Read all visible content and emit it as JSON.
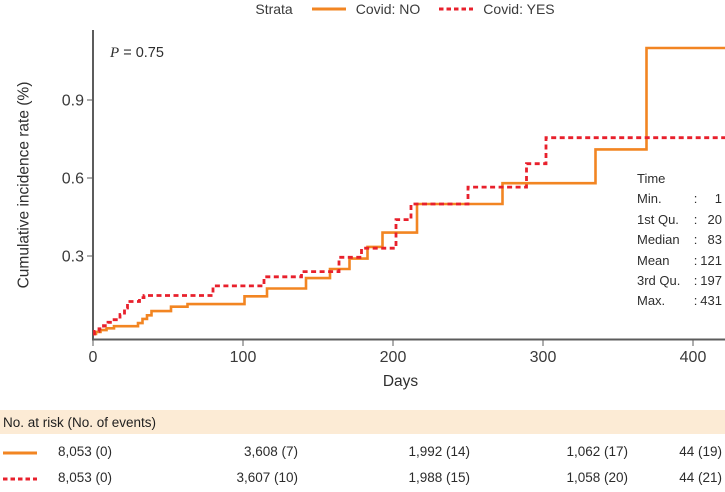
{
  "legend": {
    "title": "Strata",
    "items": [
      {
        "label": "Covid: NO"
      },
      {
        "label": "Covid: YES"
      }
    ]
  },
  "annotation": {
    "symbol": "P",
    "text": "= 0.75"
  },
  "stats_panel": {
    "title": "Time",
    "separator": ":",
    "rows": [
      {
        "label": "Min.",
        "value": "1"
      },
      {
        "label": "1st Qu.",
        "value": "20"
      },
      {
        "label": "Median",
        "value": "83"
      },
      {
        "label": "Mean",
        "value": "121"
      },
      {
        "label": "3rd Qu.",
        "value": "197"
      },
      {
        "label": "Max.",
        "value": "431"
      }
    ]
  },
  "risk_table": {
    "header": "No. at risk (No. of events)",
    "rows": [
      {
        "strata": "Covid: NO",
        "values": [
          "8,053 (0)",
          "3,608 (7)",
          "1,992 (14)",
          "1,062 (17)",
          "44 (19)"
        ]
      },
      {
        "strata": "Covid: YES",
        "values": [
          "8,053 (0)",
          "3,607 (10)",
          "1,988 (15)",
          "1,058 (20)",
          "44 (21)"
        ]
      }
    ]
  },
  "chart_data": {
    "type": "line",
    "subtype": "step",
    "xlabel": "Days",
    "ylabel": "Cumulative incidence rate (%)",
    "xlim": [
      0,
      420
    ],
    "ylim": [
      0,
      1.15
    ],
    "x_ticks": [
      0,
      100,
      200,
      300,
      400
    ],
    "y_ticks": [
      0.3,
      0.6,
      0.9
    ],
    "p_value": 0.75,
    "legend_position": "top",
    "grid": false,
    "series": [
      {
        "name": "Covid: NO",
        "color": "#F28522",
        "dash": "solid",
        "points": [
          [
            0,
            0
          ],
          [
            2,
            0.008
          ],
          [
            5,
            0.015
          ],
          [
            9,
            0.022
          ],
          [
            14,
            0.03
          ],
          [
            30,
            0.042
          ],
          [
            33,
            0.058
          ],
          [
            36,
            0.072
          ],
          [
            39,
            0.088
          ],
          [
            52,
            0.105
          ],
          [
            63,
            0.115
          ],
          [
            101,
            0.145
          ],
          [
            116,
            0.175
          ],
          [
            142,
            0.215
          ],
          [
            158,
            0.25
          ],
          [
            171,
            0.29
          ],
          [
            183,
            0.335
          ],
          [
            193,
            0.39
          ],
          [
            216,
            0.5
          ],
          [
            273,
            0.58
          ],
          [
            335,
            0.71
          ],
          [
            369,
            1.1
          ],
          [
            420,
            1.1
          ]
        ]
      },
      {
        "name": "Covid: YES",
        "color": "#E8202C",
        "dash": "dashed",
        "points": [
          [
            0,
            0
          ],
          [
            1,
            0.01
          ],
          [
            4,
            0.02
          ],
          [
            7,
            0.032
          ],
          [
            10,
            0.045
          ],
          [
            13,
            0.055
          ],
          [
            18,
            0.075
          ],
          [
            21,
            0.1
          ],
          [
            23,
            0.125
          ],
          [
            31,
            0.14
          ],
          [
            34,
            0.148
          ],
          [
            80,
            0.185
          ],
          [
            114,
            0.22
          ],
          [
            139,
            0.24
          ],
          [
            164,
            0.295
          ],
          [
            179,
            0.33
          ],
          [
            202,
            0.44
          ],
          [
            212,
            0.5
          ],
          [
            250,
            0.565
          ],
          [
            289,
            0.655
          ],
          [
            302,
            0.755
          ],
          [
            420,
            0.755
          ]
        ]
      }
    ]
  },
  "colors": {
    "band": "#FCEBD5",
    "axis": "#5C5C5C",
    "tick_text": "#3A3A3A"
  }
}
